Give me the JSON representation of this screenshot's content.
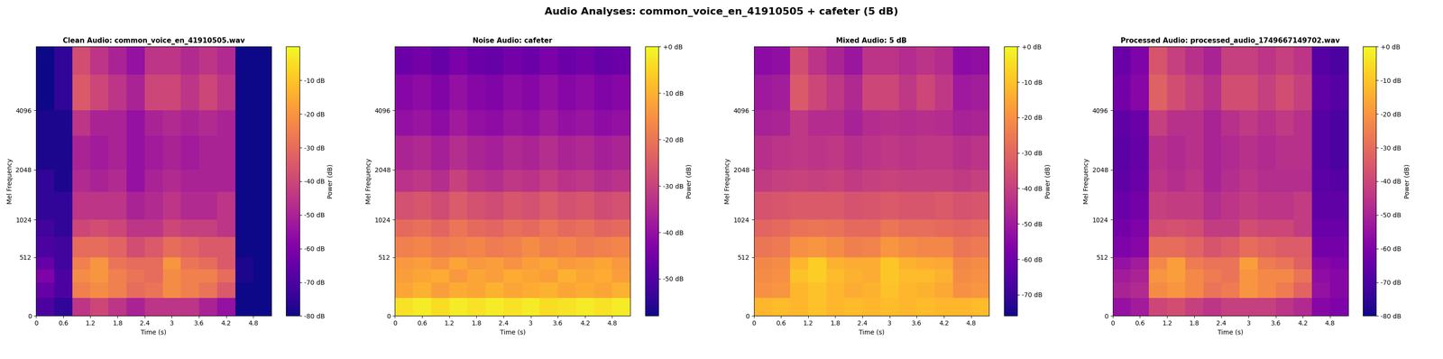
{
  "title": "Audio Analyses: common_voice_en_41910505 + cafeter (5 dB)",
  "chart_data": [
    {
      "type": "heatmap",
      "title": "Clean Audio: common_voice_en_41910505.wav",
      "x_label": "Time (s)",
      "y_label": "Mel Frequency",
      "xlim": [
        0,
        5.2
      ],
      "xticks": [
        0,
        0.6,
        1.2,
        1.8,
        2.4,
        3,
        3.6,
        4.2,
        4.8
      ],
      "ylim": [
        0,
        8000
      ],
      "yticks": [
        0,
        512,
        1024,
        2048,
        4096
      ],
      "x_edges": [
        0,
        0.4,
        0.8,
        1.2,
        1.6,
        2.0,
        2.4,
        2.8,
        3.2,
        3.6,
        4.0,
        4.4,
        4.8,
        5.2
      ],
      "y_edges": [
        0,
        128,
        256,
        384,
        512,
        768,
        1024,
        1536,
        2048,
        3072,
        4096,
        6000,
        8000
      ],
      "cells": [
        [
          -70,
          -75,
          -45,
          -40,
          -45,
          -50,
          -45,
          -45,
          -45,
          -50,
          -55,
          -80,
          -80
        ],
        [
          -65,
          -70,
          -25,
          -22,
          -25,
          -30,
          -28,
          -22,
          -25,
          -28,
          -35,
          -80,
          -80
        ],
        [
          -60,
          -70,
          -22,
          -20,
          -25,
          -28,
          -30,
          -22,
          -25,
          -25,
          -30,
          -78,
          -80
        ],
        [
          -65,
          -72,
          -25,
          -20,
          -28,
          -30,
          -30,
          -20,
          -28,
          -30,
          -35,
          -78,
          -80
        ],
        [
          -70,
          -72,
          -30,
          -30,
          -32,
          -38,
          -35,
          -30,
          -32,
          -35,
          -35,
          -80,
          -80
        ],
        [
          -72,
          -75,
          -40,
          -38,
          -40,
          -45,
          -45,
          -40,
          -42,
          -42,
          -45,
          -80,
          -80
        ],
        [
          -75,
          -75,
          -45,
          -45,
          -45,
          -50,
          -48,
          -45,
          -48,
          -48,
          -45,
          -80,
          -80
        ],
        [
          -75,
          -78,
          -48,
          -50,
          -48,
          -55,
          -50,
          -48,
          -50,
          -50,
          -50,
          -80,
          -80
        ],
        [
          -78,
          -78,
          -50,
          -52,
          -50,
          -55,
          -52,
          -50,
          -52,
          -50,
          -50,
          -80,
          -80
        ],
        [
          -78,
          -78,
          -45,
          -50,
          -50,
          -55,
          -50,
          -48,
          -50,
          -48,
          -50,
          -80,
          -80
        ],
        [
          -80,
          -75,
          -35,
          -40,
          -45,
          -50,
          -40,
          -40,
          -45,
          -40,
          -45,
          -80,
          -80
        ],
        [
          -80,
          -75,
          -38,
          -45,
          -50,
          -55,
          -45,
          -45,
          -48,
          -45,
          -48,
          -80,
          -80
        ]
      ],
      "colorbar": {
        "label": "Power (dB)",
        "range": [
          -80,
          0
        ],
        "ticks": [
          {
            "value": -80,
            "label": "-80 dB"
          },
          {
            "value": -70,
            "label": "-70 dB"
          },
          {
            "value": -60,
            "label": "-60 dB"
          },
          {
            "value": -50,
            "label": "-50 dB"
          },
          {
            "value": -40,
            "label": "-40 dB"
          },
          {
            "value": -30,
            "label": "-30 dB"
          },
          {
            "value": -20,
            "label": "-20 dB"
          },
          {
            "value": -10,
            "label": "-10 dB"
          }
        ]
      }
    },
    {
      "type": "heatmap",
      "title": "Noise Audio: cafeter",
      "x_label": "Time (s)",
      "y_label": "Mel Frequency",
      "xlim": [
        0,
        5.2
      ],
      "xticks": [
        0,
        0.6,
        1.2,
        1.8,
        2.4,
        3,
        3.6,
        4.2,
        4.8
      ],
      "ylim": [
        0,
        8000
      ],
      "yticks": [
        0,
        512,
        1024,
        2048,
        4096
      ],
      "x_edges": [
        0,
        0.4,
        0.8,
        1.2,
        1.6,
        2.0,
        2.4,
        2.8,
        3.2,
        3.6,
        4.0,
        4.4,
        4.8,
        5.2
      ],
      "y_edges": [
        0,
        128,
        256,
        384,
        512,
        768,
        1024,
        1536,
        2048,
        3072,
        4096,
        6000,
        8000
      ],
      "cells": [
        [
          -3,
          -2,
          -4,
          -2,
          -3,
          -2,
          -3,
          -2,
          -4,
          -3,
          -2,
          -3,
          -2
        ],
        [
          -12,
          -10,
          -13,
          -11,
          -12,
          -10,
          -12,
          -11,
          -10,
          -12,
          -11,
          -12,
          -10
        ],
        [
          -13,
          -12,
          -11,
          -14,
          -12,
          -13,
          -11,
          -12,
          -13,
          -10,
          -12,
          -11,
          -13
        ],
        [
          -14,
          -13,
          -15,
          -12,
          -14,
          -13,
          -15,
          -13,
          -12,
          -14,
          -13,
          -12,
          -14
        ],
        [
          -18,
          -17,
          -19,
          -18,
          -17,
          -19,
          -18,
          -16,
          -18,
          -17,
          -19,
          -18,
          -17
        ],
        [
          -22,
          -21,
          -23,
          -20,
          -22,
          -23,
          -21,
          -22,
          -20,
          -22,
          -21,
          -23,
          -22
        ],
        [
          -27,
          -26,
          -28,
          -25,
          -27,
          -28,
          -26,
          -27,
          -25,
          -27,
          -26,
          -28,
          -27
        ],
        [
          -33,
          -32,
          -34,
          -30,
          -33,
          -34,
          -32,
          -33,
          -31,
          -33,
          -32,
          -34,
          -33
        ],
        [
          -36,
          -35,
          -37,
          -34,
          -36,
          -37,
          -35,
          -36,
          -34,
          -36,
          -35,
          -37,
          -36
        ],
        [
          -40,
          -39,
          -41,
          -38,
          -40,
          -41,
          -39,
          -40,
          -38,
          -40,
          -39,
          -41,
          -40
        ],
        [
          -42,
          -41,
          -43,
          -40,
          -42,
          -43,
          -41,
          -42,
          -40,
          -42,
          -41,
          -43,
          -42
        ],
        [
          -46,
          -45,
          -47,
          -44,
          -46,
          -47,
          -45,
          -46,
          -44,
          -46,
          -45,
          -47,
          -46
        ]
      ],
      "colorbar": {
        "label": "Power (dB)",
        "range": [
          -58,
          0
        ],
        "ticks": [
          {
            "value": -50,
            "label": "-50 dB"
          },
          {
            "value": -40,
            "label": "-40 dB"
          },
          {
            "value": -30,
            "label": "-30 dB"
          },
          {
            "value": -20,
            "label": "-20 dB"
          },
          {
            "value": -10,
            "label": "-10 dB"
          },
          {
            "value": 0,
            "label": "+0 dB"
          }
        ]
      }
    },
    {
      "type": "heatmap",
      "title": "Mixed Audio: 5 dB",
      "x_label": "Time (s)",
      "y_label": "Mel Frequency",
      "xlim": [
        0,
        5.2
      ],
      "xticks": [
        0,
        0.6,
        1.2,
        1.8,
        2.4,
        3,
        3.6,
        4.2,
        4.8
      ],
      "ylim": [
        0,
        8000
      ],
      "yticks": [
        0,
        512,
        1024,
        2048,
        4096
      ],
      "x_edges": [
        0,
        0.4,
        0.8,
        1.2,
        1.6,
        2.0,
        2.4,
        2.8,
        3.2,
        3.6,
        4.0,
        4.4,
        4.8,
        5.2
      ],
      "y_edges": [
        0,
        128,
        256,
        384,
        512,
        768,
        1024,
        1536,
        2048,
        3072,
        4096,
        6000,
        8000
      ],
      "cells": [
        [
          -12,
          -11,
          -12,
          -10,
          -12,
          -11,
          -12,
          -11,
          -12,
          -11,
          -12,
          -12,
          -11
        ],
        [
          -20,
          -19,
          -12,
          -10,
          -12,
          -14,
          -13,
          -10,
          -12,
          -13,
          -15,
          -20,
          -19
        ],
        [
          -21,
          -20,
          -10,
          -8,
          -11,
          -13,
          -14,
          -9,
          -11,
          -11,
          -13,
          -21,
          -20
        ],
        [
          -22,
          -21,
          -12,
          -8,
          -13,
          -14,
          -14,
          -9,
          -13,
          -14,
          -15,
          -22,
          -21
        ],
        [
          -26,
          -25,
          -20,
          -19,
          -21,
          -24,
          -23,
          -19,
          -21,
          -22,
          -22,
          -26,
          -25
        ],
        [
          -30,
          -29,
          -27,
          -26,
          -27,
          -29,
          -29,
          -26,
          -28,
          -28,
          -29,
          -30,
          -29
        ],
        [
          -35,
          -34,
          -33,
          -33,
          -33,
          -35,
          -34,
          -33,
          -34,
          -34,
          -33,
          -35,
          -34
        ],
        [
          -41,
          -40,
          -39,
          -40,
          -39,
          -41,
          -40,
          -39,
          -40,
          -40,
          -40,
          -41,
          -40
        ],
        [
          -44,
          -43,
          -42,
          -43,
          -42,
          -44,
          -43,
          -42,
          -43,
          -42,
          -42,
          -44,
          -43
        ],
        [
          -48,
          -47,
          -42,
          -45,
          -45,
          -48,
          -45,
          -44,
          -45,
          -44,
          -45,
          -48,
          -47
        ],
        [
          -50,
          -49,
          -33,
          -38,
          -42,
          -46,
          -38,
          -38,
          -42,
          -38,
          -42,
          -50,
          -49
        ],
        [
          -54,
          -53,
          -36,
          -43,
          -47,
          -51,
          -43,
          -43,
          -45,
          -43,
          -45,
          -54,
          -53
        ]
      ],
      "colorbar": {
        "label": "Power (dB)",
        "range": [
          -76,
          0
        ],
        "ticks": [
          {
            "value": -70,
            "label": "-70 dB"
          },
          {
            "value": -60,
            "label": "-60 dB"
          },
          {
            "value": -50,
            "label": "-50 dB"
          },
          {
            "value": -40,
            "label": "-40 dB"
          },
          {
            "value": -30,
            "label": "-30 dB"
          },
          {
            "value": -20,
            "label": "-20 dB"
          },
          {
            "value": -10,
            "label": "-10 dB"
          },
          {
            "value": 0,
            "label": "+0 dB"
          }
        ]
      }
    },
    {
      "type": "heatmap",
      "title": "Processed Audio: processed_audio_1749667149702.wav",
      "x_label": "Time (s)",
      "y_label": "Mel Frequency",
      "xlim": [
        0,
        5.2
      ],
      "xticks": [
        0,
        0.6,
        1.2,
        1.8,
        2.4,
        3,
        3.6,
        4.2,
        4.8
      ],
      "ylim": [
        0,
        8000
      ],
      "yticks": [
        0,
        512,
        1024,
        2048,
        4096
      ],
      "x_edges": [
        0,
        0.4,
        0.8,
        1.2,
        1.6,
        2.0,
        2.4,
        2.8,
        3.2,
        3.6,
        4.0,
        4.4,
        4.8,
        5.2
      ],
      "y_edges": [
        0,
        128,
        256,
        384,
        512,
        768,
        1024,
        1536,
        2048,
        3072,
        4096,
        6000,
        8000
      ],
      "cells": [
        [
          -55,
          -52,
          -40,
          -38,
          -42,
          -45,
          -42,
          -42,
          -42,
          -45,
          -48,
          -58,
          -60
        ],
        [
          -50,
          -48,
          -22,
          -20,
          -23,
          -28,
          -26,
          -20,
          -23,
          -26,
          -32,
          -55,
          -58
        ],
        [
          -52,
          -50,
          -20,
          -18,
          -23,
          -26,
          -28,
          -20,
          -23,
          -23,
          -28,
          -56,
          -58
        ],
        [
          -55,
          -52,
          -23,
          -18,
          -26,
          -28,
          -28,
          -18,
          -26,
          -28,
          -33,
          -58,
          -60
        ],
        [
          -60,
          -58,
          -30,
          -30,
          -32,
          -36,
          -34,
          -30,
          -32,
          -34,
          -34,
          -62,
          -62
        ],
        [
          -62,
          -60,
          -38,
          -37,
          -38,
          -43,
          -43,
          -38,
          -40,
          -40,
          -43,
          -64,
          -64
        ],
        [
          -64,
          -62,
          -42,
          -43,
          -43,
          -47,
          -45,
          -43,
          -45,
          -45,
          -43,
          -66,
          -66
        ],
        [
          -66,
          -64,
          -45,
          -47,
          -45,
          -50,
          -47,
          -45,
          -47,
          -47,
          -47,
          -67,
          -68
        ],
        [
          -67,
          -65,
          -46,
          -48,
          -46,
          -50,
          -48,
          -46,
          -48,
          -46,
          -46,
          -68,
          -70
        ],
        [
          -66,
          -64,
          -42,
          -46,
          -46,
          -50,
          -46,
          -44,
          -46,
          -44,
          -46,
          -68,
          -70
        ],
        [
          -62,
          -58,
          -33,
          -38,
          -42,
          -46,
          -38,
          -38,
          -42,
          -38,
          -42,
          -66,
          -68
        ],
        [
          -64,
          -60,
          -36,
          -42,
          -46,
          -50,
          -42,
          -42,
          -45,
          -42,
          -45,
          -68,
          -70
        ]
      ],
      "colorbar": {
        "label": "Power (dB)",
        "range": [
          -80,
          0
        ],
        "ticks": [
          {
            "value": -80,
            "label": "-80 dB"
          },
          {
            "value": -70,
            "label": "-70 dB"
          },
          {
            "value": -60,
            "label": "-60 dB"
          },
          {
            "value": -50,
            "label": "-50 dB"
          },
          {
            "value": -40,
            "label": "-40 dB"
          },
          {
            "value": -30,
            "label": "-30 dB"
          },
          {
            "value": -20,
            "label": "-20 dB"
          },
          {
            "value": -10,
            "label": "-10 dB"
          },
          {
            "value": 0,
            "label": "+0 dB"
          }
        ]
      }
    }
  ]
}
